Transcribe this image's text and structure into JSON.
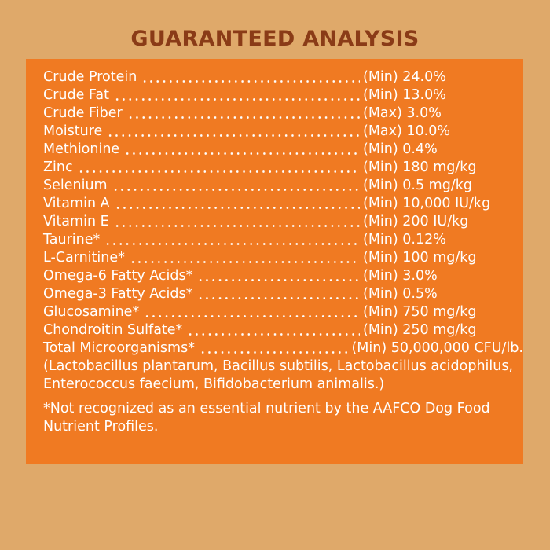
{
  "title": "GUARANTEED ANALYSIS",
  "rows": [
    {
      "name": "Crude Protein",
      "value": "(Min) 24.0%"
    },
    {
      "name": "Crude Fat",
      "value": "(Min) 13.0%"
    },
    {
      "name": "Crude Fiber",
      "value": "(Max) 3.0%"
    },
    {
      "name": "Moisture",
      "value": "(Max) 10.0%"
    },
    {
      "name": "Methionine",
      "value": "(Min) 0.4%"
    },
    {
      "name": "Zinc",
      "value": "(Min) 180 mg/kg"
    },
    {
      "name": "Selenium",
      "value": "(Min) 0.5 mg/kg"
    },
    {
      "name": "Vitamin A",
      "value": "(Min) 10,000 IU/kg"
    },
    {
      "name": "Vitamin E",
      "value": "(Min) 200 IU/kg"
    },
    {
      "name": "Taurine*",
      "value": "(Min) 0.12%"
    },
    {
      "name": "L-Carnitine*",
      "value": "(Min) 100 mg/kg"
    },
    {
      "name": "Omega-6 Fatty Acids*",
      "value": "(Min) 3.0%"
    },
    {
      "name": "Omega-3 Fatty Acids*",
      "value": "(Min) 0.5%"
    },
    {
      "name": "Glucosamine*",
      "value": "(Min) 750 mg/kg"
    },
    {
      "name": "Chondroitin Sulfate*",
      "value": "(Min) 250 mg/kg"
    },
    {
      "name": "Total Microorganisms*",
      "value": "(Min) 50,000,000 CFU/lb."
    }
  ],
  "note": "(Lactobacillus plantarum, Bacillus subtilis, Lactobacillus acidophilus, Enterococcus faecium, Bifidobacterium animalis.)",
  "footnote": "*Not recognized as an essential nutrient by the AAFCO Dog Food Nutrient Profiles."
}
